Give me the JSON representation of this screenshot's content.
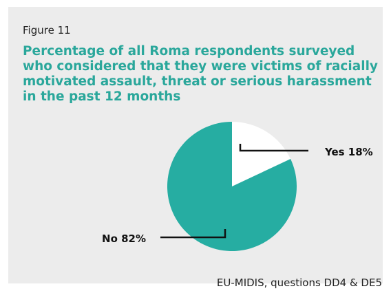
{
  "figure_label": "Figure 11",
  "title": "Percentage of all Roma respondents surveyed who considered that they were victims of racially motivated assault, threat or serious harassment in the past 12 months",
  "source": "EU-MIDIS, questions DD4 & DE5",
  "chart_data": {
    "type": "pie",
    "slices": [
      {
        "label": "Yes 18%",
        "value": 18,
        "color": "#ffffff"
      },
      {
        "label": "No 82%",
        "value": 82,
        "color": "#26ada2"
      }
    ],
    "legend": "none"
  }
}
